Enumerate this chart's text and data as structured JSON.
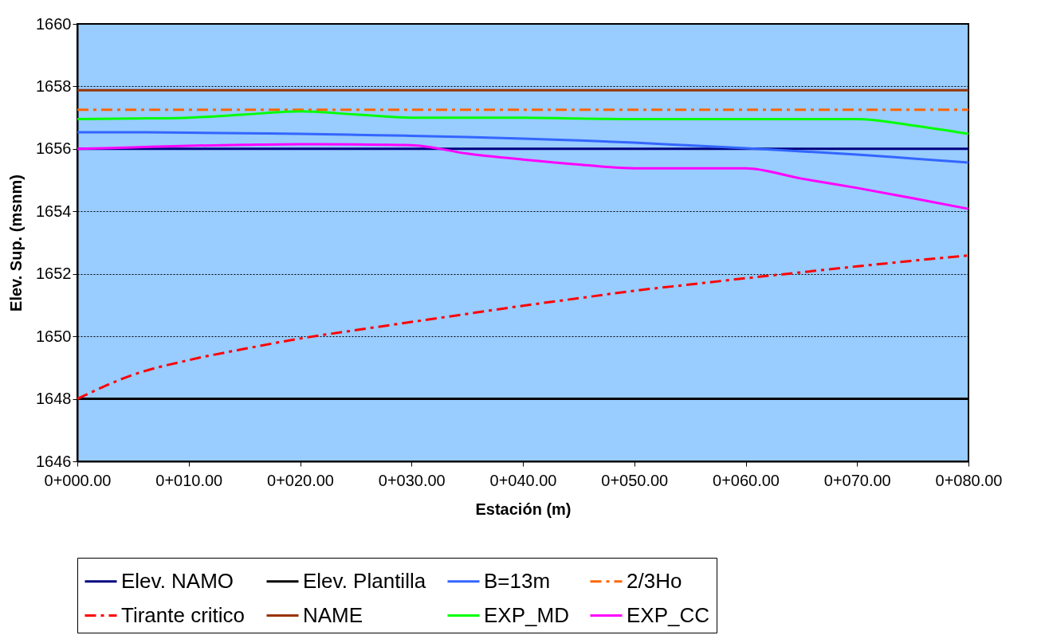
{
  "chart_data": {
    "type": "line",
    "xlabel": "Estación (m)",
    "ylabel": "Elev. Sup. (msnm)",
    "categories": [
      "0+000.00",
      null,
      "0+010.00",
      null,
      "0+020.00",
      null,
      "0+030.00",
      null,
      "0+040.00",
      null,
      "0+050.00",
      null,
      "0+060.00",
      null,
      "0+070.00",
      null,
      "0+080.00"
    ],
    "ylim": [
      1646,
      1660
    ],
    "yticks": [
      1646,
      1648,
      1650,
      1652,
      1654,
      1656,
      1658,
      1660
    ],
    "grid": "y",
    "legend": "bottom",
    "line_style": "solid",
    "series": [
      {
        "name": "Elev. NAMO",
        "color": "#000080",
        "values": [
          1656,
          1656,
          1656,
          1656,
          1656,
          1656,
          1656,
          1656,
          1656,
          1656,
          1656,
          1656,
          1656,
          1656,
          1656,
          1656,
          1656
        ]
      },
      {
        "name": "Elev. Plantilla",
        "color": "#000000",
        "values": [
          1648,
          1648,
          1648,
          1648,
          1648,
          1648,
          1648,
          1648,
          1648,
          1648,
          1648,
          1648,
          1648,
          1648,
          1648,
          1648,
          1648
        ]
      },
      {
        "name": "B=13m",
        "color": "#3366ff",
        "values": [
          1656.53,
          1656.53,
          1656.52,
          1656.5,
          1656.48,
          1656.45,
          1656.42,
          1656.38,
          1656.33,
          1656.27,
          1656.2,
          1656.11,
          1656.02,
          1655.92,
          1655.82,
          1655.69,
          1655.56
        ]
      },
      {
        "name": "2/3Ho",
        "color": "#ff6600",
        "line_style": "dashed",
        "values": [
          1657.25,
          1657.25,
          1657.25,
          1657.25,
          1657.25,
          1657.25,
          1657.25,
          1657.25,
          1657.25,
          1657.25,
          1657.25,
          1657.25,
          1657.25,
          1657.25,
          1657.25,
          1657.25,
          1657.25
        ]
      },
      {
        "name": "Tirante critico",
        "color": "#ff0000",
        "line_style": "dashed",
        "values": [
          1648.0,
          1648.77,
          1649.24,
          1649.6,
          1649.93,
          1650.2,
          1650.46,
          1650.72,
          1650.98,
          1651.22,
          1651.46,
          1651.66,
          1651.86,
          1652.05,
          1652.24,
          1652.42,
          1652.59
        ]
      },
      {
        "name": "NAME",
        "color": "#993300",
        "values": [
          1657.88,
          1657.88,
          1657.88,
          1657.88,
          1657.88,
          1657.88,
          1657.88,
          1657.88,
          1657.88,
          1657.88,
          1657.88,
          1657.88,
          1657.88,
          1657.88,
          1657.88,
          1657.88,
          1657.88
        ]
      },
      {
        "name": "EXP_MD",
        "color": "#00ff00",
        "values": [
          1656.95,
          1656.97,
          1657.0,
          1657.1,
          1657.2,
          1657.1,
          1657.0,
          1657.0,
          1657.0,
          1656.97,
          1656.95,
          1656.95,
          1656.95,
          1656.95,
          1656.95,
          1656.75,
          1656.48
        ]
      },
      {
        "name": "EXP_CC",
        "color": "#ff00ff",
        "values": [
          1656.0,
          1656.05,
          1656.1,
          1656.13,
          1656.15,
          1656.14,
          1656.12,
          1655.85,
          1655.66,
          1655.5,
          1655.38,
          1655.38,
          1655.38,
          1655.05,
          1654.75,
          1654.42,
          1654.08
        ]
      }
    ]
  }
}
